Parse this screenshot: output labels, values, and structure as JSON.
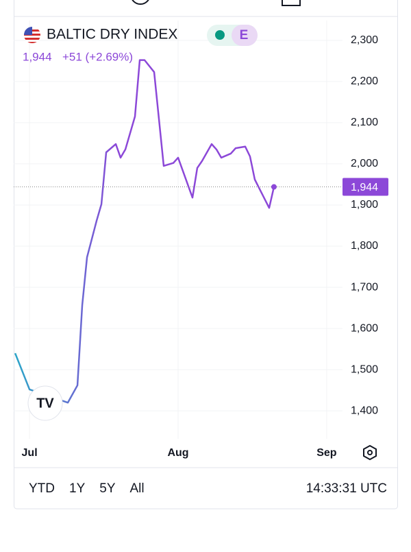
{
  "chart_data": {
    "type": "line",
    "title": "BALTIC DRY INDEX",
    "badge": "E",
    "price_label": "1,944",
    "change_label": "+51 (+2.69%)",
    "x": [
      -3,
      0,
      8,
      10,
      11,
      12,
      14,
      15,
      16,
      18,
      19,
      20,
      22,
      23,
      24,
      26,
      28,
      30,
      31,
      34,
      35,
      36,
      38,
      39,
      40,
      42,
      43,
      45,
      46,
      47,
      50,
      51
    ],
    "values": [
      1540,
      1452,
      1420,
      1462,
      1657,
      1773,
      1862,
      1902,
      2028,
      2048,
      2015,
      2035,
      2115,
      2252,
      2252,
      2223,
      1995,
      2002,
      2015,
      1918,
      1990,
      2007,
      2048,
      2035,
      2015,
      2025,
      2038,
      2042,
      2018,
      1962,
      1893,
      1944
    ],
    "colors": [
      "#2aa6c8",
      "#8c48d8"
    ],
    "xlim": [
      -3.3,
      65.3
    ],
    "xticks": [
      {
        "value": 0,
        "label": "Jul"
      },
      {
        "value": 31,
        "label": "Aug"
      },
      {
        "value": 62,
        "label": "Sep"
      }
    ],
    "ylim": [
      1332,
      2348
    ],
    "yticks": [
      {
        "value": 1400,
        "label": "1,400"
      },
      {
        "value": 1500,
        "label": "1,500"
      },
      {
        "value": 1600,
        "label": "1,600"
      },
      {
        "value": 1700,
        "label": "1,700"
      },
      {
        "value": 1800,
        "label": "1,800"
      },
      {
        "value": 1900,
        "label": "1,900"
      },
      {
        "value": 2000,
        "label": "2,000"
      },
      {
        "value": 2100,
        "label": "2,100"
      },
      {
        "value": 2200,
        "label": "2,200"
      },
      {
        "value": 2300,
        "label": "2,300"
      }
    ],
    "grid": true
  },
  "ranges": [
    "YTD",
    "1Y",
    "5Y",
    "All"
  ],
  "time": "14:33:31 UTC"
}
